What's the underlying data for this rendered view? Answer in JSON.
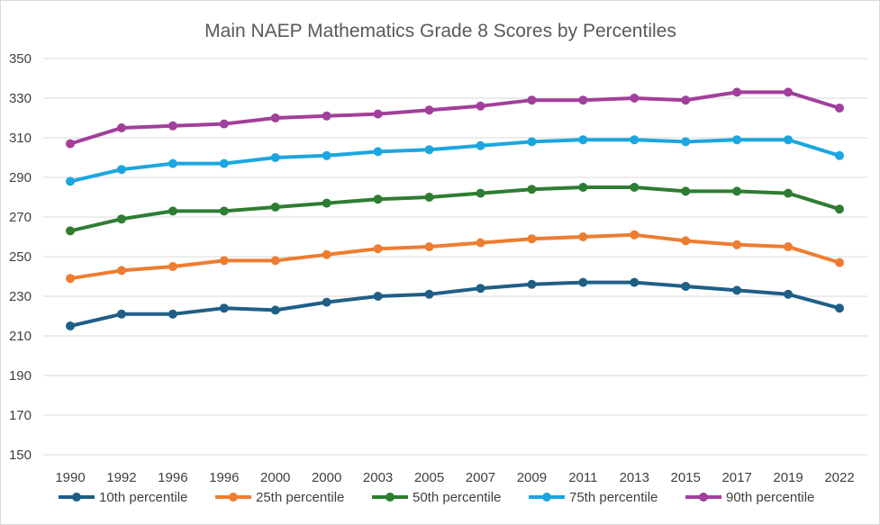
{
  "chart_data": {
    "type": "line",
    "title": "Main NAEP Mathematics Grade 8 Scores by Percentiles",
    "xlabel": "",
    "ylabel": "",
    "categories": [
      "1990",
      "1992",
      "1996",
      "1996",
      "2000",
      "2000",
      "2003",
      "2005",
      "2007",
      "2009",
      "2011",
      "2013",
      "2015",
      "2017",
      "2019",
      "2022"
    ],
    "yticks": [
      "150",
      "170",
      "190",
      "210",
      "230",
      "250",
      "270",
      "290",
      "310",
      "330",
      "350"
    ],
    "ylim": [
      150,
      350
    ],
    "grid": "horizontal",
    "legend_position": "bottom",
    "series": [
      {
        "name": "10th percentile",
        "color": "#1f5f86",
        "values": [
          215,
          221,
          221,
          224,
          223,
          227,
          230,
          231,
          234,
          236,
          237,
          237,
          235,
          233,
          231,
          224
        ]
      },
      {
        "name": "25th percentile",
        "color": "#ed7d31",
        "values": [
          239,
          243,
          245,
          248,
          248,
          251,
          254,
          255,
          257,
          259,
          260,
          261,
          258,
          256,
          255,
          247
        ]
      },
      {
        "name": "50th percentile",
        "color": "#2e7d32",
        "values": [
          263,
          269,
          273,
          273,
          275,
          277,
          279,
          280,
          282,
          284,
          285,
          285,
          283,
          283,
          282,
          274
        ]
      },
      {
        "name": "75th percentile",
        "color": "#1ca6df",
        "values": [
          288,
          294,
          297,
          297,
          300,
          301,
          303,
          304,
          306,
          308,
          309,
          309,
          308,
          309,
          309,
          301
        ]
      },
      {
        "name": "90th percentile",
        "color": "#a23f9b",
        "values": [
          307,
          315,
          316,
          317,
          320,
          321,
          322,
          324,
          326,
          329,
          329,
          330,
          329,
          333,
          333,
          325
        ]
      }
    ]
  }
}
